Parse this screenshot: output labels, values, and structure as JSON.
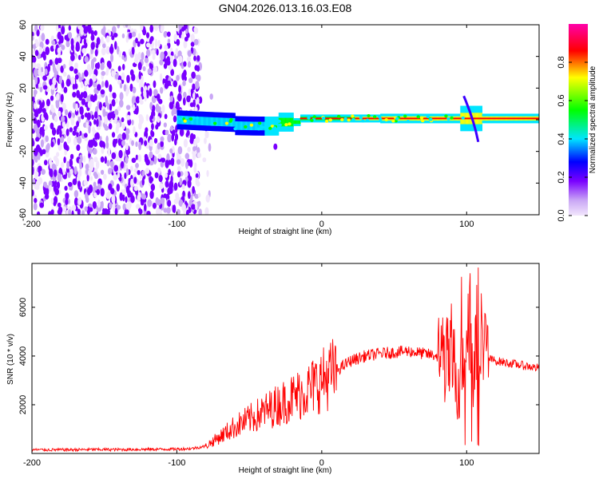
{
  "chart_data": [
    {
      "type": "heatmap",
      "title": "GN04.2026.013.16.03.E08",
      "xlabel": "Height of straight line (km)",
      "ylabel": "Frequency (Hz)",
      "xlim": [
        -200,
        150
      ],
      "ylim": [
        -60,
        60
      ],
      "xticks": [
        -200,
        -100,
        0,
        100
      ],
      "yticks": [
        -60,
        -40,
        -20,
        0,
        20,
        40,
        60
      ],
      "colorbar": {
        "label": "Normalized spectral amplitude",
        "range": [
          0,
          1
        ],
        "ticks": [
          0.0,
          0.2,
          0.4,
          0.6,
          0.8
        ],
        "colors": [
          "#f2e6fc",
          "#7a00ff",
          "#0000ff",
          "#00e5ff",
          "#00ff00",
          "#ffff00",
          "#ff0000",
          "#ff00aa"
        ]
      },
      "description_regions": [
        {
          "x_range": [
            -200,
            -76
          ],
          "freq_range": [
            -60,
            60
          ],
          "amplitude": 0.1,
          "note": "broadband noise"
        },
        {
          "x_range": [
            -100,
            150
          ],
          "freq_center": 0,
          "amplitude": 0.9,
          "note": "carrier line"
        }
      ]
    },
    {
      "type": "line",
      "xlabel": "Height of straight line (km)",
      "ylabel": "SNR (10 * v/v)",
      "xlim": [
        -200,
        150
      ],
      "ylim": [
        0,
        7800
      ],
      "xticks": [
        -200,
        -100,
        0,
        100
      ],
      "yticks": [
        2000,
        4000,
        6000
      ],
      "color": "#ff0000",
      "series": [
        {
          "name": "SNR",
          "x": [
            -200,
            -180,
            -160,
            -140,
            -120,
            -100,
            -90,
            -80,
            -70,
            -60,
            -50,
            -40,
            -30,
            -20,
            -10,
            0,
            10,
            20,
            30,
            40,
            50,
            60,
            70,
            80,
            90,
            95,
            100,
            105,
            110,
            115,
            120,
            130,
            140,
            150
          ],
          "values": [
            150,
            150,
            160,
            160,
            170,
            180,
            200,
            300,
            700,
            1100,
            1400,
            1700,
            2000,
            2300,
            2600,
            3000,
            3400,
            3800,
            4000,
            4100,
            4150,
            4200,
            4100,
            4000,
            3700,
            3000,
            5000,
            3500,
            5200,
            3900,
            3800,
            3700,
            3600,
            3500
          ]
        }
      ]
    }
  ]
}
